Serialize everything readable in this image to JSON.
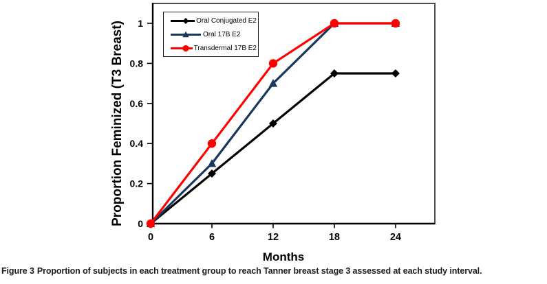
{
  "figure": {
    "caption_label": "Figure 3",
    "caption_text": "Proportion of subjects in each treatment group to reach Tanner breast stage 3 assessed at each study interval."
  },
  "chart_data": {
    "type": "line",
    "x": [
      0,
      6,
      12,
      18,
      24
    ],
    "series": [
      {
        "name": "Oral Conjugated E2",
        "color": "#000000",
        "marker": "diamond",
        "values": [
          0,
          0.25,
          0.5,
          0.75,
          0.75
        ]
      },
      {
        "name": "Oral 17B E2",
        "color": "#17375E",
        "marker": "triangle",
        "values": [
          0,
          0.3,
          0.7,
          1,
          1
        ]
      },
      {
        "name": "Transdermal 17B E2",
        "color": "#FE0000",
        "marker": "circle",
        "values": [
          0,
          0.4,
          0.8,
          1,
          1
        ]
      }
    ],
    "xlabel": "Months",
    "ylabel": "Proportion Feminized (T3 Breast)",
    "xticks": [
      0,
      6,
      12,
      18,
      24
    ],
    "yticks": [
      0,
      0.2,
      0.4,
      0.6,
      0.8,
      1
    ],
    "xlim": [
      0,
      28
    ],
    "ylim": [
      0,
      1.1
    ],
    "grid": false,
    "legend_position": "top-left",
    "colors": {
      "axis": "#000000",
      "frame": "#4d4d4d",
      "background": "#ffffff"
    }
  }
}
